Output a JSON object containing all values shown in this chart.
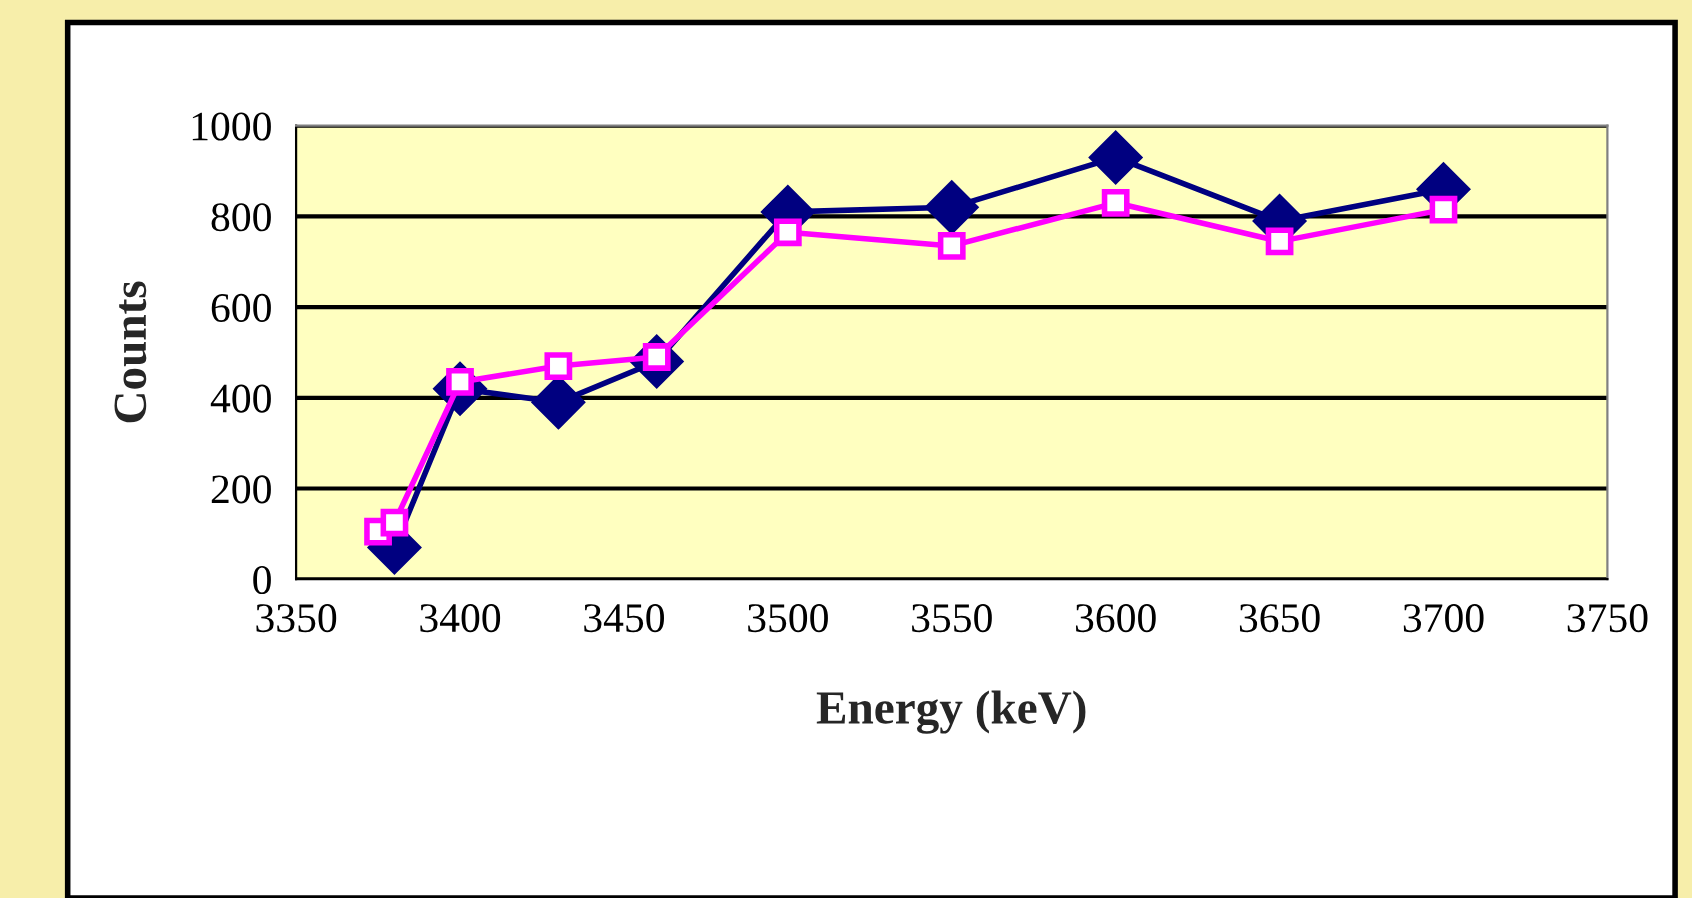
{
  "chart_data": {
    "type": "line",
    "xlabel": "Energy (keV)",
    "ylabel": "Counts",
    "xlim": [
      3350,
      3750
    ],
    "xticks": [
      3350,
      3400,
      3450,
      3500,
      3550,
      3600,
      3650,
      3700,
      3750
    ],
    "ylim": [
      0,
      1000
    ],
    "yticks": [
      0,
      200,
      400,
      600,
      800,
      1000
    ],
    "grid": "y",
    "legend": false,
    "series": [
      {
        "color": "#000080",
        "marker": "diamond",
        "x": [
          3380,
          3400,
          3430,
          3460,
          3500,
          3550,
          3600,
          3650,
          3700
        ],
        "values": [
          70,
          420,
          390,
          480,
          810,
          820,
          930,
          790,
          860
        ]
      },
      {
        "color": "#ff00ff",
        "marker": "square",
        "x": [
          3375,
          3380,
          3400,
          3430,
          3460,
          3500,
          3550,
          3600,
          3650,
          3700
        ],
        "values": [
          105,
          125,
          435,
          470,
          490,
          765,
          735,
          830,
          745,
          815
        ]
      }
    ]
  }
}
